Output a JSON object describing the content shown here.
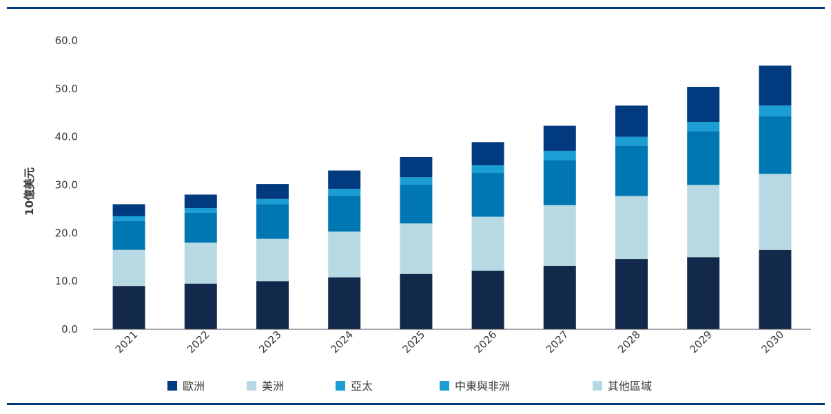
{
  "chart_data": {
    "type": "bar",
    "stacked": true,
    "title": "",
    "xlabel": "",
    "ylabel": "10億美元",
    "ylim": [
      0,
      60
    ],
    "yticks": [
      "0.0",
      "10.0",
      "20.0",
      "30.0",
      "40.0",
      "50.0",
      "60.0"
    ],
    "grid": false,
    "legend_position": "bottom",
    "categories": [
      "2021",
      "2022",
      "2023",
      "2024",
      "2025",
      "2026",
      "2027",
      "2028",
      "2029",
      "2030"
    ],
    "series": [
      {
        "name": "",
        "color": "#13294b",
        "values": [
          9.0,
          9.5,
          10.0,
          10.8,
          11.5,
          12.2,
          13.2,
          14.6,
          15.0,
          16.5
        ]
      },
      {
        "name": "",
        "color": "#b7d9e4",
        "values": [
          7.5,
          8.5,
          8.8,
          9.5,
          10.5,
          11.2,
          12.6,
          13.1,
          15.0,
          15.8
        ]
      },
      {
        "name": "",
        "color": "#0077b3",
        "values": [
          6.0,
          6.2,
          7.2,
          7.5,
          8.0,
          9.1,
          9.4,
          10.5,
          11.2,
          12.0
        ]
      },
      {
        "name": "",
        "color": "#1a9ed4",
        "values": [
          1.0,
          1.0,
          1.1,
          1.4,
          1.6,
          1.6,
          1.9,
          1.8,
          1.9,
          2.2
        ]
      },
      {
        "name": "",
        "color": "#013a7f",
        "values": [
          2.5,
          2.8,
          3.1,
          3.8,
          4.2,
          4.8,
          5.2,
          6.5,
          7.3,
          8.3
        ]
      }
    ],
    "legend": [
      {
        "label": "歐洲",
        "color": "#013a7f"
      },
      {
        "label": "美洲",
        "color": "#b7d9e4"
      },
      {
        "label": "亞太",
        "color": "#1a9ed4"
      },
      {
        "label": "中東與非洲",
        "color": "#1a9ed4"
      },
      {
        "label": "其他區域",
        "color": "#b7d9e4"
      }
    ]
  },
  "theme": {
    "rule_color": "#013a7f",
    "axis_color": "#555555",
    "text_color": "#3a3a3a"
  }
}
